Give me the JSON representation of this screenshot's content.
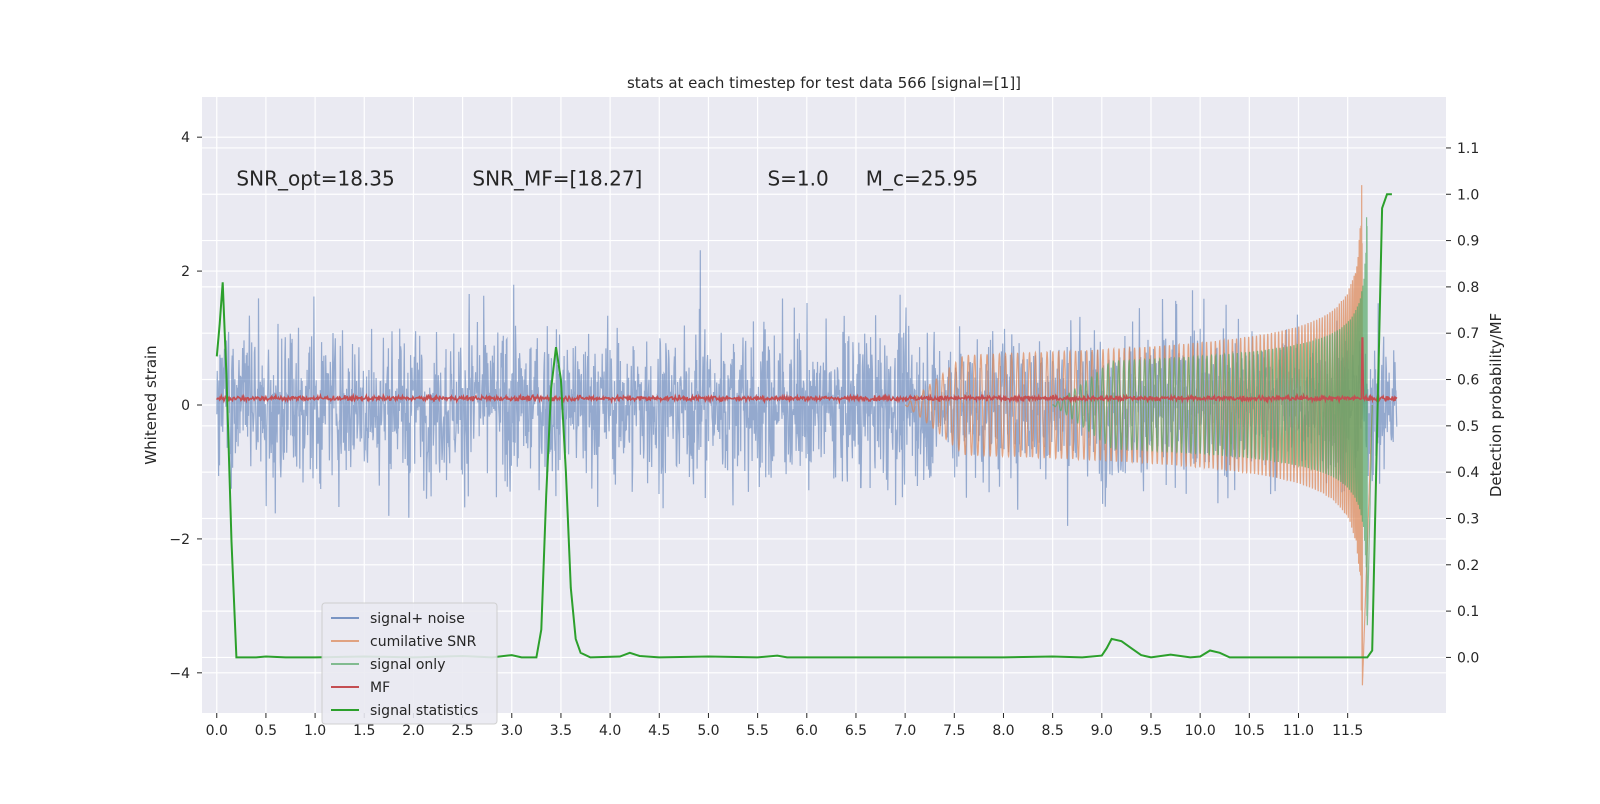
{
  "chart_data": {
    "type": "line",
    "title": "stats at each timestep for test data 566 [signal=[1]]",
    "ylabel_left": "Whitened strain",
    "ylabel_right": "Detection probability/MF",
    "xlim": [
      -0.15,
      12.5
    ],
    "ylim_left": [
      -4.6,
      4.6
    ],
    "ylim_right": [
      -0.12,
      1.21
    ],
    "x_ticks": [
      0.0,
      0.5,
      1.0,
      1.5,
      2.0,
      2.5,
      3.0,
      3.5,
      4.0,
      4.5,
      5.0,
      5.5,
      6.0,
      6.5,
      7.0,
      7.5,
      8.0,
      8.5,
      9.0,
      9.5,
      10.0,
      10.5,
      11.0,
      11.5
    ],
    "x_tick_labels": [
      "0.0",
      "0.5",
      "1.0",
      "1.5",
      "2.0",
      "2.5",
      "3.0",
      "3.5",
      "4.0",
      "4.5",
      "5.0",
      "5.5",
      "6.0",
      "6.5",
      "7.0",
      "7.5",
      "8.0",
      "8.5",
      "9.0",
      "9.5",
      "10.0",
      "10.5",
      "11.0",
      "11.5"
    ],
    "y_left_ticks": [
      4,
      2,
      0,
      -2,
      -4
    ],
    "y_left_tick_labels": [
      "4",
      "2",
      "0",
      "−2",
      "−4"
    ],
    "y_right_ticks": [
      1.1,
      1.0,
      0.9,
      0.8,
      0.7,
      0.6,
      0.5,
      0.4,
      0.3,
      0.2,
      0.1,
      0.0
    ],
    "y_right_tick_labels": [
      "1.1",
      "1.0",
      "0.9",
      "0.8",
      "0.7",
      "0.6",
      "0.5",
      "0.4",
      "0.3",
      "0.2",
      "0.1",
      "0.0"
    ],
    "grid": true,
    "legend_position": "bottom-left",
    "annotations": [
      {
        "text": "SNR_opt=18.35",
        "x": 0.2,
        "y": 3.4
      },
      {
        "text": "SNR_MF=[18.27]",
        "x": 2.6,
        "y": 3.4
      },
      {
        "text": "S=1.0",
        "x": 5.6,
        "y": 3.4
      },
      {
        "text": "M_c=25.95",
        "x": 6.6,
        "y": 3.4
      }
    ],
    "series": [
      {
        "name": "signal+ noise",
        "color": "#4c72b0",
        "style": "noise band",
        "x_range": [
          0.0,
          12.0
        ],
        "typical_amplitude": 1.3,
        "peak_max": 3.5,
        "peak_min": -3.0
      },
      {
        "name": "cumilative SNR",
        "color": "#dd8452",
        "style": "chirp",
        "x_range": [
          7.0,
          11.75
        ],
        "peak_x": 11.65,
        "peak_max": 4.2,
        "peak_min": -4.2
      },
      {
        "name": "signal only",
        "color": "#55a868",
        "style": "chirp",
        "x_range": [
          8.5,
          11.75
        ],
        "peak_x": 11.7,
        "peak_max": 3.3,
        "peak_min": -3.4
      },
      {
        "name": "MF",
        "color": "#c44e52",
        "style": "flat",
        "x_range": [
          0.0,
          12.0
        ],
        "level": 0.1,
        "spike_x": 11.65,
        "spike_value": 1.0
      },
      {
        "name": "signal statistics",
        "color": "#2ca02c",
        "style": "line",
        "axis": "right",
        "points": [
          [
            0.0,
            0.65
          ],
          [
            0.03,
            0.72
          ],
          [
            0.06,
            0.81
          ],
          [
            0.1,
            0.6
          ],
          [
            0.15,
            0.25
          ],
          [
            0.2,
            0.0
          ],
          [
            0.4,
            0.0
          ],
          [
            0.5,
            0.002
          ],
          [
            0.7,
            0.0
          ],
          [
            1.0,
            0.0
          ],
          [
            1.5,
            0.002
          ],
          [
            2.0,
            0.0
          ],
          [
            2.5,
            0.003
          ],
          [
            2.8,
            0.0
          ],
          [
            3.0,
            0.005
          ],
          [
            3.1,
            0.0
          ],
          [
            3.25,
            0.0
          ],
          [
            3.3,
            0.06
          ],
          [
            3.35,
            0.35
          ],
          [
            3.4,
            0.58
          ],
          [
            3.45,
            0.67
          ],
          [
            3.5,
            0.6
          ],
          [
            3.55,
            0.4
          ],
          [
            3.6,
            0.15
          ],
          [
            3.65,
            0.04
          ],
          [
            3.7,
            0.01
          ],
          [
            3.8,
            0.0
          ],
          [
            4.1,
            0.002
          ],
          [
            4.2,
            0.01
          ],
          [
            4.3,
            0.003
          ],
          [
            4.5,
            0.0
          ],
          [
            5.0,
            0.002
          ],
          [
            5.5,
            0.0
          ],
          [
            5.7,
            0.004
          ],
          [
            5.8,
            0.0
          ],
          [
            6.5,
            0.0
          ],
          [
            7.0,
            0.0
          ],
          [
            8.0,
            0.0
          ],
          [
            8.5,
            0.002
          ],
          [
            8.8,
            0.0
          ],
          [
            9.0,
            0.004
          ],
          [
            9.05,
            0.02
          ],
          [
            9.1,
            0.04
          ],
          [
            9.2,
            0.035
          ],
          [
            9.3,
            0.02
          ],
          [
            9.4,
            0.005
          ],
          [
            9.5,
            0.0
          ],
          [
            9.7,
            0.006
          ],
          [
            9.9,
            0.0
          ],
          [
            10.0,
            0.002
          ],
          [
            10.1,
            0.015
          ],
          [
            10.2,
            0.01
          ],
          [
            10.3,
            0.0
          ],
          [
            10.5,
            0.0
          ],
          [
            11.0,
            0.0
          ],
          [
            11.5,
            0.0
          ],
          [
            11.7,
            0.0
          ],
          [
            11.75,
            0.015
          ],
          [
            11.8,
            0.5
          ],
          [
            11.85,
            0.97
          ],
          [
            11.9,
            1.0
          ],
          [
            11.95,
            1.0
          ]
        ]
      }
    ]
  }
}
